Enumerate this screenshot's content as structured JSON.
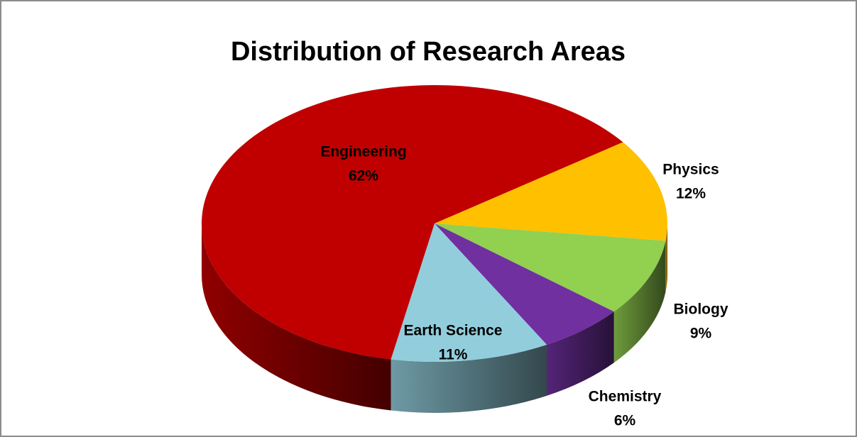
{
  "chart_data": {
    "type": "pie3d",
    "title": "Distribution of Research Areas",
    "categories": [
      "Physics",
      "Biology",
      "Chemistry",
      "Earth Science",
      "Engineering"
    ],
    "values": [
      12,
      9,
      6,
      11,
      62
    ],
    "value_labels": [
      "12%",
      "9%",
      "6%",
      "11%",
      "62%"
    ],
    "colors": [
      "#ffc000",
      "#92d050",
      "#7030a0",
      "#92cddc",
      "#c00000"
    ]
  }
}
